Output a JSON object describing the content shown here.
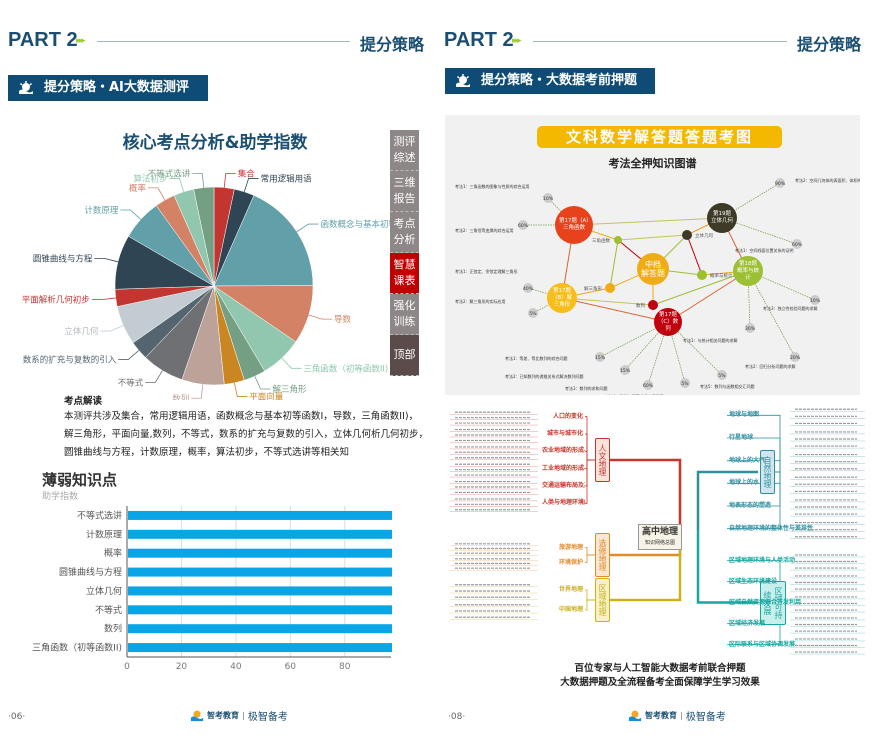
{
  "left": {
    "part": "PART 2",
    "section": "提分策略",
    "banner": "提分策略・AI大数据测评",
    "pie_title": "核心考点分析&助学指数",
    "nav": [
      {
        "label": "测评综述",
        "color": "#8e8787"
      },
      {
        "label": "三维报告",
        "color": "#8e8787"
      },
      {
        "label": "考点分析",
        "color": "#8e8787"
      },
      {
        "label": "智慧课表",
        "color": "#c00000"
      },
      {
        "label": "强化训练",
        "color": "#8e8787"
      },
      {
        "label": "顶部",
        "color": "#5b4b4b"
      }
    ],
    "note_title": "考点解读",
    "note_lines": [
      "本测评共涉及集合，常用逻辑用语，函数概念与基本初等函数I，导数，三角函数II)，",
      "解三角形，平面向量,数列，不等式，数系的扩充与复数的引入，立体几何析几何初步，",
      "圆锥曲线与方程，计数原理，概率，算法初步，不等式选讲等相关知"
    ],
    "page": "·06·"
  },
  "chart_data": [
    {
      "type": "pie",
      "title": "核心考点分析&助学指数",
      "slices": [
        {
          "label": "集合",
          "value": 3.3,
          "color": "#c23531"
        },
        {
          "label": "常用逻辑用语",
          "value": 3.3,
          "color": "#2f4554"
        },
        {
          "label": "函数概念与基本初等函数Ⅰ",
          "value": 18.3,
          "color": "#61a0a8"
        },
        {
          "label": "导数",
          "value": 9.6,
          "color": "#d48265"
        },
        {
          "label": "三角函数（初等函数II)",
          "value": 6.9,
          "color": "#91c7ae"
        },
        {
          "label": "解三角形",
          "value": 3.6,
          "color": "#749f83"
        },
        {
          "label": "平面向量",
          "value": 3.3,
          "color": "#ca8622"
        },
        {
          "label": "数列",
          "value": 6.9,
          "color": "#bda29a"
        },
        {
          "label": "不等式",
          "value": 6.9,
          "color": "#6e7074"
        },
        {
          "label": "数系的扩充与复数的引入",
          "value": 3.1,
          "color": "#546570"
        },
        {
          "label": "立体几何",
          "value": 6.4,
          "color": "#c4ccd3"
        },
        {
          "label": "平面解析几何初步",
          "value": 2.8,
          "color": "#c23531"
        },
        {
          "label": "圆锥曲线与方程",
          "value": 8.9,
          "color": "#2f4554"
        },
        {
          "label": "计数原理",
          "value": 6.7,
          "color": "#61a0a8"
        },
        {
          "label": "概率",
          "value": 3.3,
          "color": "#d48265"
        },
        {
          "label": "算法初步",
          "value": 3.3,
          "color": "#91c7ae"
        },
        {
          "label": "不等式选讲",
          "value": 3.3,
          "color": "#749f83"
        }
      ]
    },
    {
      "type": "bar",
      "orientation": "horizontal",
      "title": "薄弱知识点",
      "subtitle": "助学指数",
      "categories": [
        "不等式选讲",
        "计数原理",
        "概率",
        "圆锥曲线与方程",
        "立体几何",
        "不等式",
        "数列",
        "三角函数（初等函数II)"
      ],
      "values": [
        97,
        97,
        97,
        97,
        97,
        97,
        97,
        97
      ],
      "xticks": [
        "0",
        "20",
        "40",
        "60",
        "80"
      ],
      "xlim": [
        0,
        97
      ],
      "grid": true,
      "color": "#0aa5e6"
    }
  ],
  "right": {
    "part": "PART 2",
    "section": "提分策略",
    "banner": "提分策略・大数据考前押题",
    "graph_title": "文科数学解答题答题考图",
    "graph_subtitle": "考法全押知识图谱",
    "nodes": [
      {
        "label": "第17题（A）三角函数",
        "color": "#e8421c"
      },
      {
        "label": "第19题 立体几何",
        "color": "#3d3a27"
      },
      {
        "label": "中档 解答题",
        "color": "#f0ac14"
      },
      {
        "label": "第18题 概率与统计",
        "color": "#9cbf33"
      },
      {
        "label": "第17题（B）解三角形",
        "color": "#f7bd1a"
      },
      {
        "label": "第17题（C）数列",
        "color": "#c0000c"
      },
      {
        "label": "三角函数",
        "color": "#9cbf33"
      },
      {
        "label": "立体几何",
        "color": "#3d3a27"
      },
      {
        "label": "概率与统计",
        "color": "#9cbf33"
      },
      {
        "label": "解三角形",
        "color": "#f0ac14"
      },
      {
        "label": "数列",
        "color": "#c0000c"
      }
    ],
    "bubbles": [
      {
        "pct": "10%",
        "text": "考法1：三角函数的图象与性质的综合运用"
      },
      {
        "pct": "60%",
        "text": "考法2：三角恒等变换的综合运用"
      },
      {
        "pct": "90%",
        "text": "考法2：空间几何体的表面积、体积的求解"
      },
      {
        "pct": "60%",
        "text": "考法1：空间线面位置关系的证明"
      },
      {
        "pct": "40%",
        "text": "考法1：正弦定、余弦定理解三角形"
      },
      {
        "pct": "5%",
        "text": "考法2：解三角形的实际应用"
      },
      {
        "pct": "10%",
        "text": "考法3：独立性检验问题的求解"
      },
      {
        "pct": "30%",
        "text": "考法1：与统计相关问题的求解"
      },
      {
        "pct": "20%",
        "text": "考法2：回归分析问题的求解"
      },
      {
        "pct": "15%",
        "text": "考法1：等差、等比数列的综合问题"
      },
      {
        "pct": "15%",
        "text": "考法2：已知数列的递推关系式解决数列问题"
      },
      {
        "pct": "60%",
        "text": "考法3：数列的求和问题"
      },
      {
        "pct": "5%",
        "text": "考法4：数列与不等式相交汇问题"
      },
      {
        "pct": "5%",
        "text": "考法5：数列与函数相交汇问题"
      }
    ],
    "mindmap": {
      "center": "高中地理",
      "center_sub": "知识网络总图",
      "left": [
        {
          "label": "人文地理",
          "color": "#c8352a",
          "bg": "#fbe3dc",
          "subs": [
            "人口的变化",
            "城市与城市化",
            "农业地域的形成与发展",
            "工业地域的形成与发展",
            "交通运输布局及其影响",
            "人类与地理环境的协调发展"
          ]
        },
        {
          "label": "选修地理",
          "color": "#e08a2a",
          "bg": "#fbe6cf",
          "subs": [
            "旅游地理",
            "环境保护"
          ]
        },
        {
          "label": "区域地理",
          "color": "#c9b316",
          "bg": "#f7f1c9",
          "subs": [
            "世界地理",
            "中国地理"
          ]
        }
      ],
      "right": [
        {
          "label": "自然地理",
          "color": "#2f8fa0",
          "bg": "#cfe6ee",
          "subs": [
            "地球与地图",
            "行星地球",
            "地球上的大气",
            "地球上的水",
            "地表形态的塑造",
            "自然地理环境的整体性与差异性"
          ]
        },
        {
          "label": "区域可持续发展",
          "color": "#17a7a0",
          "bg": "#c9efec",
          "subs": [
            "区域地理环境与人类活动",
            "区域生态环境建设",
            "区域自然资源综合开发利用",
            "区域经济发展",
            "区际联系与区域协调发展"
          ]
        }
      ]
    },
    "bottom_lines": [
      "百位专家与人工智能大数据考前联合押题",
      "大数据押题及全流程备考全面保障学生学习效果"
    ],
    "page": "·08·"
  },
  "logo": {
    "brand1": "智考教育",
    "brand2": "极智备考"
  }
}
